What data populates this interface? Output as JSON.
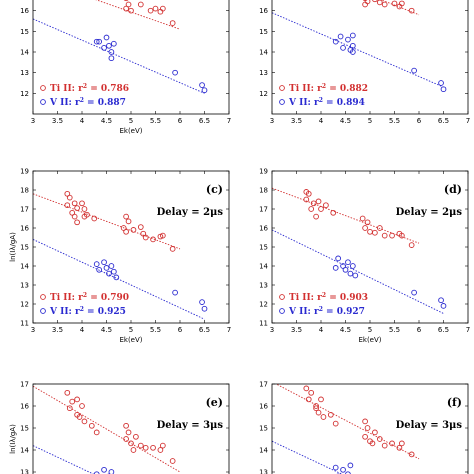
{
  "chart_data": [
    {
      "id": "a",
      "type": "scatter",
      "label": "",
      "delay": "",
      "xlabel": "Ek(eV)",
      "ylabel": "",
      "xlim": [
        3,
        7
      ],
      "ylim": [
        11,
        17
      ],
      "xticks": [
        "3",
        "3.5",
        "4",
        "4.5",
        "5",
        "5.5",
        "6",
        "6.5",
        "7"
      ],
      "yticks": [
        "12",
        "13",
        "14",
        "15",
        "16"
      ],
      "ti_legend": "Ti II: r",
      "ti_r2": "= 0.786",
      "v_legend": "V II: r",
      "v_r2": "= 0.887",
      "ti_fit": [
        [
          3.0,
          17.6
        ],
        [
          6.0,
          15.1
        ]
      ],
      "v_fit": [
        [
          3.0,
          15.6
        ],
        [
          6.5,
          12.0
        ]
      ],
      "ti_points": [
        [
          3.8,
          16.8
        ],
        [
          4.9,
          16.6
        ],
        [
          4.95,
          16.3
        ],
        [
          4.9,
          16.1
        ],
        [
          5.0,
          16.0
        ],
        [
          5.2,
          16.3
        ],
        [
          5.4,
          16.0
        ],
        [
          5.5,
          16.1
        ],
        [
          5.6,
          15.95
        ],
        [
          5.65,
          16.1
        ],
        [
          5.85,
          15.4
        ]
      ],
      "v_points": [
        [
          4.3,
          14.5
        ],
        [
          4.35,
          14.5
        ],
        [
          4.45,
          14.2
        ],
        [
          4.5,
          14.7
        ],
        [
          4.55,
          14.3
        ],
        [
          4.6,
          14.0
        ],
        [
          4.65,
          14.4
        ],
        [
          4.6,
          13.7
        ],
        [
          5.9,
          13.0
        ],
        [
          6.45,
          12.4
        ],
        [
          6.5,
          12.15
        ]
      ]
    },
    {
      "id": "b",
      "type": "scatter",
      "label": "",
      "delay": "",
      "xlabel": "",
      "ylabel": "",
      "xlim": [
        3,
        7
      ],
      "ylim": [
        11,
        17
      ],
      "xticks": [
        "3",
        "3.5",
        "4",
        "4.5",
        "5",
        "5.5",
        "6",
        "6.5",
        "7"
      ],
      "yticks": [
        "12",
        "13",
        "14",
        "15",
        "16"
      ],
      "ti_legend": "Ti II: r",
      "ti_r2": "= 0.882",
      "v_legend": "V II: r",
      "v_r2": "= 0.894",
      "ti_fit": [
        [
          4.4,
          17.3
        ],
        [
          6.0,
          15.8
        ]
      ],
      "v_fit": [
        [
          3.0,
          15.9
        ],
        [
          6.5,
          12.3
        ]
      ],
      "ti_points": [
        [
          4.8,
          16.9
        ],
        [
          4.9,
          16.6
        ],
        [
          4.95,
          16.45
        ],
        [
          4.9,
          16.3
        ],
        [
          5.1,
          16.55
        ],
        [
          5.2,
          16.4
        ],
        [
          5.3,
          16.3
        ],
        [
          5.5,
          16.35
        ],
        [
          5.6,
          16.2
        ],
        [
          5.65,
          16.35
        ],
        [
          5.85,
          16.0
        ]
      ],
      "v_points": [
        [
          4.3,
          14.5
        ],
        [
          4.4,
          14.75
        ],
        [
          4.45,
          14.2
        ],
        [
          4.55,
          14.6
        ],
        [
          4.6,
          14.1
        ],
        [
          4.65,
          14.8
        ],
        [
          4.65,
          14.3
        ],
        [
          4.65,
          14.0
        ],
        [
          5.9,
          13.1
        ],
        [
          6.45,
          12.5
        ],
        [
          6.5,
          12.2
        ]
      ]
    },
    {
      "id": "c",
      "type": "scatter",
      "label": "(c)",
      "delay": "Delay = 2μs",
      "xlabel": "Ek(eV)",
      "ylabel": "ln(Iλ/gA)",
      "xlim": [
        3,
        7
      ],
      "ylim": [
        11,
        19
      ],
      "xticks": [
        "3",
        "3.5",
        "4",
        "4.5",
        "5",
        "5.5",
        "6",
        "6.5",
        "7"
      ],
      "yticks": [
        "11",
        "12",
        "13",
        "14",
        "15",
        "16",
        "17",
        "18",
        "19"
      ],
      "ti_legend": "Ti II: r",
      "ti_r2": "= 0.790",
      "v_legend": "V II: r",
      "v_r2": "= 0.925",
      "ti_fit": [
        [
          3.0,
          17.8
        ],
        [
          6.0,
          14.9
        ]
      ],
      "v_fit": [
        [
          3.0,
          15.4
        ],
        [
          6.5,
          11.2
        ]
      ],
      "ti_points": [
        [
          3.7,
          17.8
        ],
        [
          3.75,
          17.6
        ],
        [
          3.7,
          17.2
        ],
        [
          3.85,
          17.3
        ],
        [
          3.9,
          17.05
        ],
        [
          4.0,
          17.3
        ],
        [
          4.05,
          17.0
        ],
        [
          3.8,
          16.8
        ],
        [
          3.85,
          16.6
        ],
        [
          4.05,
          16.6
        ],
        [
          4.25,
          16.5
        ],
        [
          3.9,
          16.3
        ],
        [
          4.1,
          16.7
        ],
        [
          4.9,
          16.6
        ],
        [
          4.95,
          16.35
        ],
        [
          4.85,
          16.0
        ],
        [
          4.9,
          15.8
        ],
        [
          5.05,
          15.9
        ],
        [
          5.2,
          16.05
        ],
        [
          5.25,
          15.7
        ],
        [
          5.3,
          15.5
        ],
        [
          5.45,
          15.4
        ],
        [
          5.6,
          15.55
        ],
        [
          5.65,
          15.6
        ],
        [
          5.85,
          14.9
        ]
      ],
      "v_points": [
        [
          4.3,
          14.1
        ],
        [
          4.35,
          13.8
        ],
        [
          4.45,
          14.2
        ],
        [
          4.5,
          13.9
        ],
        [
          4.55,
          13.6
        ],
        [
          4.6,
          14.0
        ],
        [
          4.65,
          13.7
        ],
        [
          4.7,
          13.4
        ],
        [
          5.9,
          12.6
        ],
        [
          6.45,
          12.1
        ],
        [
          6.5,
          11.75
        ]
      ]
    },
    {
      "id": "d",
      "type": "scatter",
      "label": "(d)",
      "delay": "Delay = 2μs",
      "xlabel": "Ek(eV)",
      "ylabel": "",
      "xlim": [
        3,
        7
      ],
      "ylim": [
        11,
        19
      ],
      "xticks": [
        "3",
        "3.5",
        "4",
        "4.5",
        "5",
        "5.5",
        "6",
        "6.5",
        "7"
      ],
      "yticks": [
        "11",
        "12",
        "13",
        "14",
        "15",
        "16",
        "17",
        "18",
        "19"
      ],
      "ti_legend": "Ti II: r",
      "ti_r2": "= 0.903",
      "v_legend": "V II: r",
      "v_r2": "= 0.927",
      "ti_fit": [
        [
          3.0,
          18.1
        ],
        [
          6.0,
          15.2
        ]
      ],
      "v_fit": [
        [
          3.0,
          15.9
        ],
        [
          6.5,
          11.5
        ]
      ],
      "ti_points": [
        [
          3.7,
          17.9
        ],
        [
          3.75,
          17.8
        ],
        [
          3.7,
          17.5
        ],
        [
          3.85,
          17.3
        ],
        [
          3.95,
          17.4
        ],
        [
          4.1,
          17.2
        ],
        [
          3.8,
          17.0
        ],
        [
          4.0,
          17.0
        ],
        [
          4.25,
          16.8
        ],
        [
          3.9,
          16.6
        ],
        [
          4.85,
          16.5
        ],
        [
          4.95,
          16.3
        ],
        [
          4.9,
          16.0
        ],
        [
          5.0,
          15.8
        ],
        [
          5.1,
          15.75
        ],
        [
          5.2,
          16.0
        ],
        [
          5.3,
          15.6
        ],
        [
          5.45,
          15.6
        ],
        [
          5.6,
          15.7
        ],
        [
          5.65,
          15.6
        ],
        [
          5.85,
          15.1
        ]
      ],
      "v_points": [
        [
          4.3,
          13.9
        ],
        [
          4.35,
          14.4
        ],
        [
          4.45,
          14.0
        ],
        [
          4.5,
          13.8
        ],
        [
          4.55,
          14.2
        ],
        [
          4.6,
          13.6
        ],
        [
          4.65,
          14.0
        ],
        [
          4.7,
          13.5
        ],
        [
          5.9,
          12.6
        ],
        [
          6.45,
          12.2
        ],
        [
          6.5,
          11.9
        ]
      ]
    },
    {
      "id": "e",
      "type": "scatter",
      "label": "(e)",
      "delay": "Delay = 3μs",
      "xlabel": "",
      "ylabel": "ln(Iλ/gA)",
      "xlim": [
        3,
        7
      ],
      "ylim": [
        12,
        17
      ],
      "xticks": [],
      "yticks": [
        "13",
        "14",
        "15",
        "16",
        "17"
      ],
      "ti_legend": "",
      "ti_r2": "",
      "v_legend": "",
      "v_r2": "",
      "ti_fit": [
        [
          3.0,
          16.9
        ],
        [
          6.0,
          13.0
        ]
      ],
      "v_fit": [
        [
          3.0,
          14.2
        ],
        [
          5.0,
          12.1
        ]
      ],
      "ti_points": [
        [
          3.7,
          16.6
        ],
        [
          3.8,
          16.2
        ],
        [
          3.75,
          15.9
        ],
        [
          3.9,
          16.3
        ],
        [
          4.0,
          16.0
        ],
        [
          3.9,
          15.6
        ],
        [
          4.05,
          15.3
        ],
        [
          4.2,
          15.1
        ],
        [
          4.3,
          14.8
        ],
        [
          3.95,
          15.5
        ],
        [
          4.9,
          15.1
        ],
        [
          4.95,
          14.8
        ],
        [
          4.9,
          14.5
        ],
        [
          5.0,
          14.3
        ],
        [
          5.05,
          14.0
        ],
        [
          5.1,
          14.6
        ],
        [
          5.2,
          14.2
        ],
        [
          5.3,
          14.1
        ],
        [
          5.45,
          14.1
        ],
        [
          5.6,
          14.0
        ],
        [
          5.65,
          14.2
        ],
        [
          5.85,
          13.5
        ]
      ],
      "v_points": [
        [
          4.3,
          12.9
        ],
        [
          4.35,
          12.7
        ],
        [
          4.45,
          13.1
        ],
        [
          4.5,
          12.5
        ],
        [
          4.55,
          12.8
        ],
        [
          4.6,
          13.0
        ],
        [
          4.65,
          12.3
        ]
      ]
    },
    {
      "id": "f",
      "type": "scatter",
      "label": "(f)",
      "delay": "Delay = 3μs",
      "xlabel": "",
      "ylabel": "",
      "xlim": [
        3,
        7
      ],
      "ylim": [
        12,
        17
      ],
      "xticks": [],
      "yticks": [
        "13",
        "14",
        "15",
        "16",
        "17"
      ],
      "ti_legend": "",
      "ti_r2": "",
      "v_legend": "",
      "v_r2": "",
      "ti_fit": [
        [
          3.0,
          17.1
        ],
        [
          6.0,
          13.6
        ]
      ],
      "v_fit": [
        [
          3.0,
          14.4
        ],
        [
          5.0,
          12.3
        ]
      ],
      "ti_points": [
        [
          3.7,
          16.8
        ],
        [
          3.8,
          16.6
        ],
        [
          3.75,
          16.3
        ],
        [
          3.9,
          16.0
        ],
        [
          4.0,
          16.3
        ],
        [
          3.9,
          15.9
        ],
        [
          4.05,
          15.5
        ],
        [
          4.2,
          15.6
        ],
        [
          4.3,
          15.2
        ],
        [
          3.95,
          15.7
        ],
        [
          4.9,
          15.3
        ],
        [
          4.95,
          15.0
        ],
        [
          4.9,
          14.6
        ],
        [
          5.0,
          14.4
        ],
        [
          5.05,
          14.3
        ],
        [
          5.1,
          14.8
        ],
        [
          5.2,
          14.5
        ],
        [
          5.3,
          14.2
        ],
        [
          5.45,
          14.3
        ],
        [
          5.6,
          14.1
        ],
        [
          5.65,
          14.3
        ],
        [
          5.85,
          13.8
        ]
      ],
      "v_points": [
        [
          4.3,
          13.2
        ],
        [
          4.35,
          12.8
        ],
        [
          4.45,
          13.1
        ],
        [
          4.5,
          12.6
        ],
        [
          4.55,
          12.9
        ],
        [
          4.6,
          13.3
        ],
        [
          4.65,
          12.4
        ]
      ]
    }
  ],
  "colors": {
    "ti": "#d23030",
    "v": "#2a2ad0"
  }
}
